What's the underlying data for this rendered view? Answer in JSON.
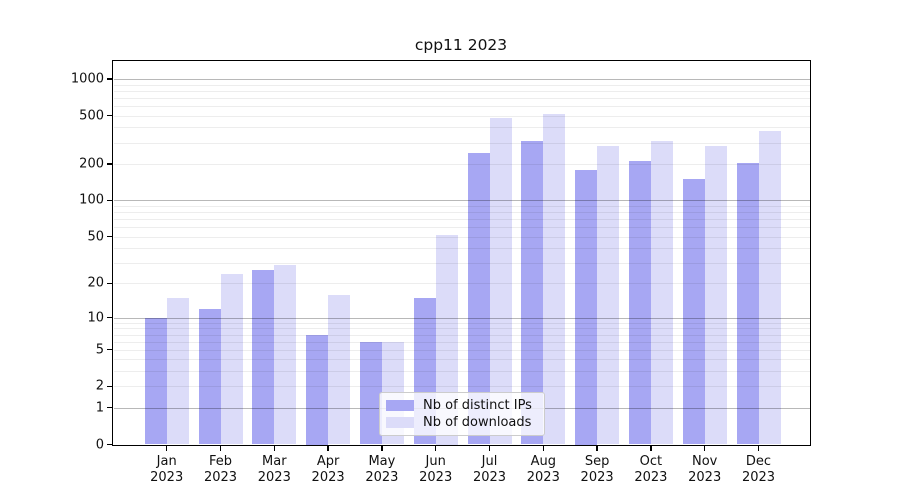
{
  "chart_data": {
    "type": "bar",
    "title": "cpp11 2023",
    "months": [
      "Jan",
      "Feb",
      "Mar",
      "Apr",
      "May",
      "Jun",
      "Jul",
      "Aug",
      "Sep",
      "Oct",
      "Nov",
      "Dec"
    ],
    "year_label": "2023",
    "series": [
      {
        "name": "Nb of distinct IPs",
        "color": "#a7a7f3",
        "values": [
          10,
          12,
          26,
          7,
          6,
          15,
          245,
          310,
          180,
          210,
          150,
          205
        ]
      },
      {
        "name": "Nb of downloads",
        "color": "#dcdcf9",
        "values": [
          15,
          24,
          29,
          16,
          6,
          52,
          480,
          520,
          280,
          310,
          280,
          375
        ]
      }
    ],
    "y_ticks": [
      0,
      1,
      2,
      5,
      10,
      20,
      50,
      100,
      200,
      500,
      1000
    ],
    "y_major_gridlines": [
      1,
      10,
      100,
      1000
    ],
    "y_scale": "log1p",
    "ylim": [
      0,
      1400
    ],
    "grid": true,
    "legend_position": "lower center",
    "axis_color": "#000000",
    "background_color": "#ffffff"
  }
}
